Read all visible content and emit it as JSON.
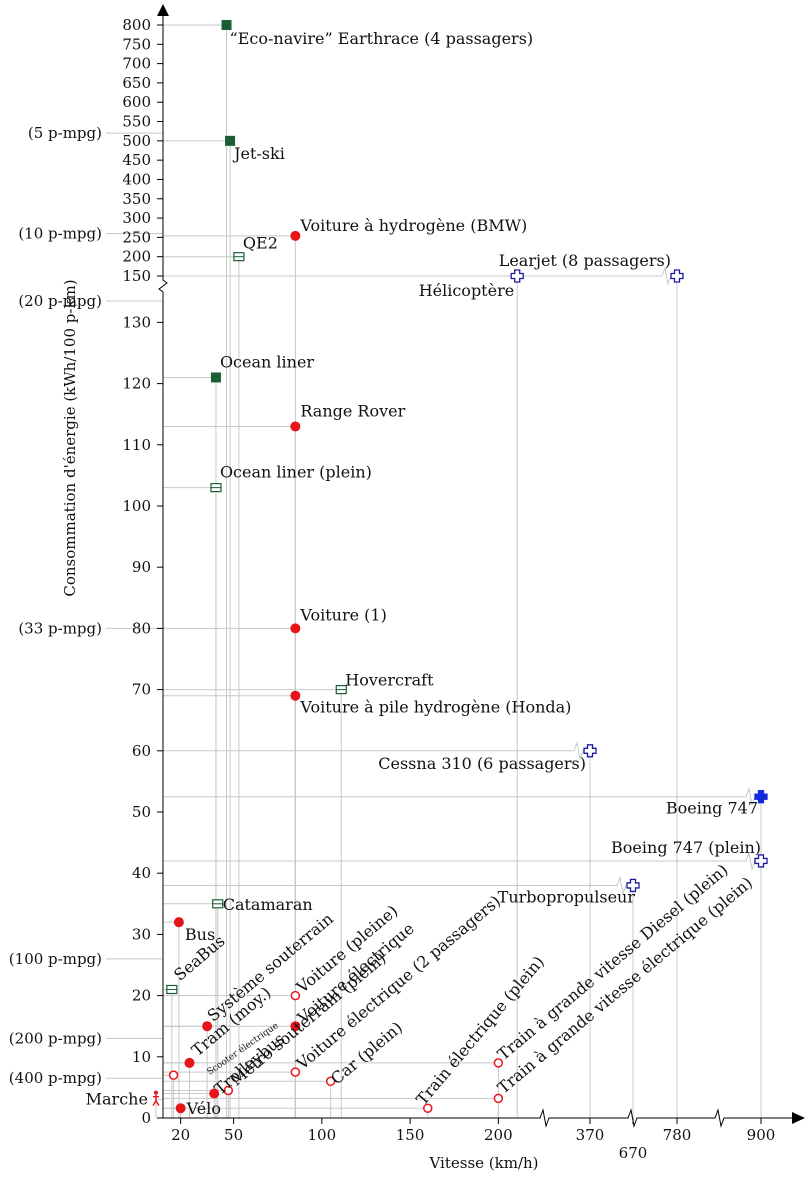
{
  "chart_data": {
    "type": "scatter",
    "xlabel": "Vitesse (km/h)",
    "ylabel": "Consommation d'énergie (kWh/100 p-km)",
    "x_ticks_linear": [
      20,
      50,
      100,
      150,
      200
    ],
    "x_ticks_broken": [
      "370",
      "670",
      "780",
      "900"
    ],
    "y_ticks_lower": [
      0,
      10,
      20,
      30,
      40,
      50,
      60,
      70,
      80,
      90,
      100,
      110,
      120,
      130
    ],
    "y_ticks_upper": [
      150,
      200,
      250,
      300,
      350,
      400,
      450,
      500,
      550,
      600,
      650,
      700,
      750,
      800
    ],
    "mpg_labels": [
      {
        "label": "(5 p-mpg)",
        "value": 520
      },
      {
        "label": "(10 p-mpg)",
        "value": 260
      },
      {
        "label": "(20 p-mpg)",
        "value": 130
      },
      {
        "label": "(33 p-mpg)",
        "value": 80
      },
      {
        "label": "(100 p-mpg)",
        "value": 26
      },
      {
        "label": "(200 p-mpg)",
        "value": 13
      },
      {
        "label": "(400 p-mpg)",
        "value": 6.5
      }
    ],
    "series": [
      {
        "marker": "filled-square",
        "color": "#1a5e34",
        "points": [
          {
            "label": "“Eco-navire” Earthrace (4 passagers)",
            "x": 46,
            "y": 800
          },
          {
            "label": "Jet-ski",
            "x": 48,
            "y": 500
          },
          {
            "label": "Ocean liner",
            "x": 40,
            "y": 121
          }
        ]
      },
      {
        "marker": "open-square",
        "color": "#1a5e34",
        "points": [
          {
            "label": "QE2",
            "x": 53,
            "y": 200
          },
          {
            "label": "Ocean liner (plein)",
            "x": 40,
            "y": 103
          },
          {
            "label": "Hovercraft",
            "x": 111,
            "y": 70
          },
          {
            "label": "Catamaran",
            "x": 41,
            "y": 35
          },
          {
            "label": "SeaBus",
            "x": 15,
            "y": 21
          }
        ]
      },
      {
        "marker": "filled-circle",
        "color": "#e8141b",
        "points": [
          {
            "label": "Voiture à hydrogène (BMW)",
            "x": 85,
            "y": 254
          },
          {
            "label": "Range Rover",
            "x": 85,
            "y": 113
          },
          {
            "label": "Voiture (1)",
            "x": 85,
            "y": 80
          },
          {
            "label": "Voiture à pile hydrogène (Honda)",
            "x": 85,
            "y": 69
          },
          {
            "label": "Bus",
            "x": 19,
            "y": 32
          },
          {
            "label": "Système souterrain",
            "x": 35,
            "y": 15
          },
          {
            "label": "Voiture électrique",
            "x": 85,
            "y": 15
          },
          {
            "label": "Tram (moy.)",
            "x": 25,
            "y": 9
          },
          {
            "label": "Trolleybus",
            "x": 39,
            "y": 4
          },
          {
            "label": "Vélo",
            "x": 20,
            "y": 1.6
          }
        ]
      },
      {
        "marker": "open-circle",
        "color": "#e8141b",
        "points": [
          {
            "label": "Voiture (pleine)",
            "x": 85,
            "y": 20
          },
          {
            "label": "Métro souterrain (plein)",
            "x": 47,
            "y": 4.5
          },
          {
            "label": "Scooter électrique",
            "x": 16,
            "y": 7
          },
          {
            "label": "Voiture électrique (2 passagers)",
            "x": 85,
            "y": 7.5
          },
          {
            "label": "Car (plein)",
            "x": 105,
            "y": 6
          },
          {
            "label": "Train électrique (plein)",
            "x": 160,
            "y": 1.6
          },
          {
            "label": "Train à grande vitesse Diesel (plein)",
            "x": 200,
            "y": 9
          },
          {
            "label": "Train à grande vitesse électrique (plein)",
            "x": 200,
            "y": 3.2
          }
        ]
      },
      {
        "marker": "walker",
        "color": "#e8141b",
        "points": [
          {
            "label": "Marche",
            "x": 6,
            "y": 3
          }
        ]
      },
      {
        "marker": "open-plus",
        "color": "#1a1aa0",
        "points": [
          {
            "label": "Hélicoptère",
            "x": 205,
            "y": 150
          },
          {
            "label": "Learjet (8 passagers)",
            "x": 780,
            "y": 150
          },
          {
            "label": "Cessna 310 (6 passagers)",
            "x": 370,
            "y": 60
          },
          {
            "label": "Boeing 747 (plein)",
            "x": 900,
            "y": 42
          },
          {
            "label": "Turbopropulseur",
            "x": 670,
            "y": 38
          }
        ]
      },
      {
        "marker": "filled-plus",
        "color": "#1428e0",
        "points": [
          {
            "label": "Boeing 747",
            "x": 900,
            "y": 52.5
          }
        ]
      }
    ]
  }
}
